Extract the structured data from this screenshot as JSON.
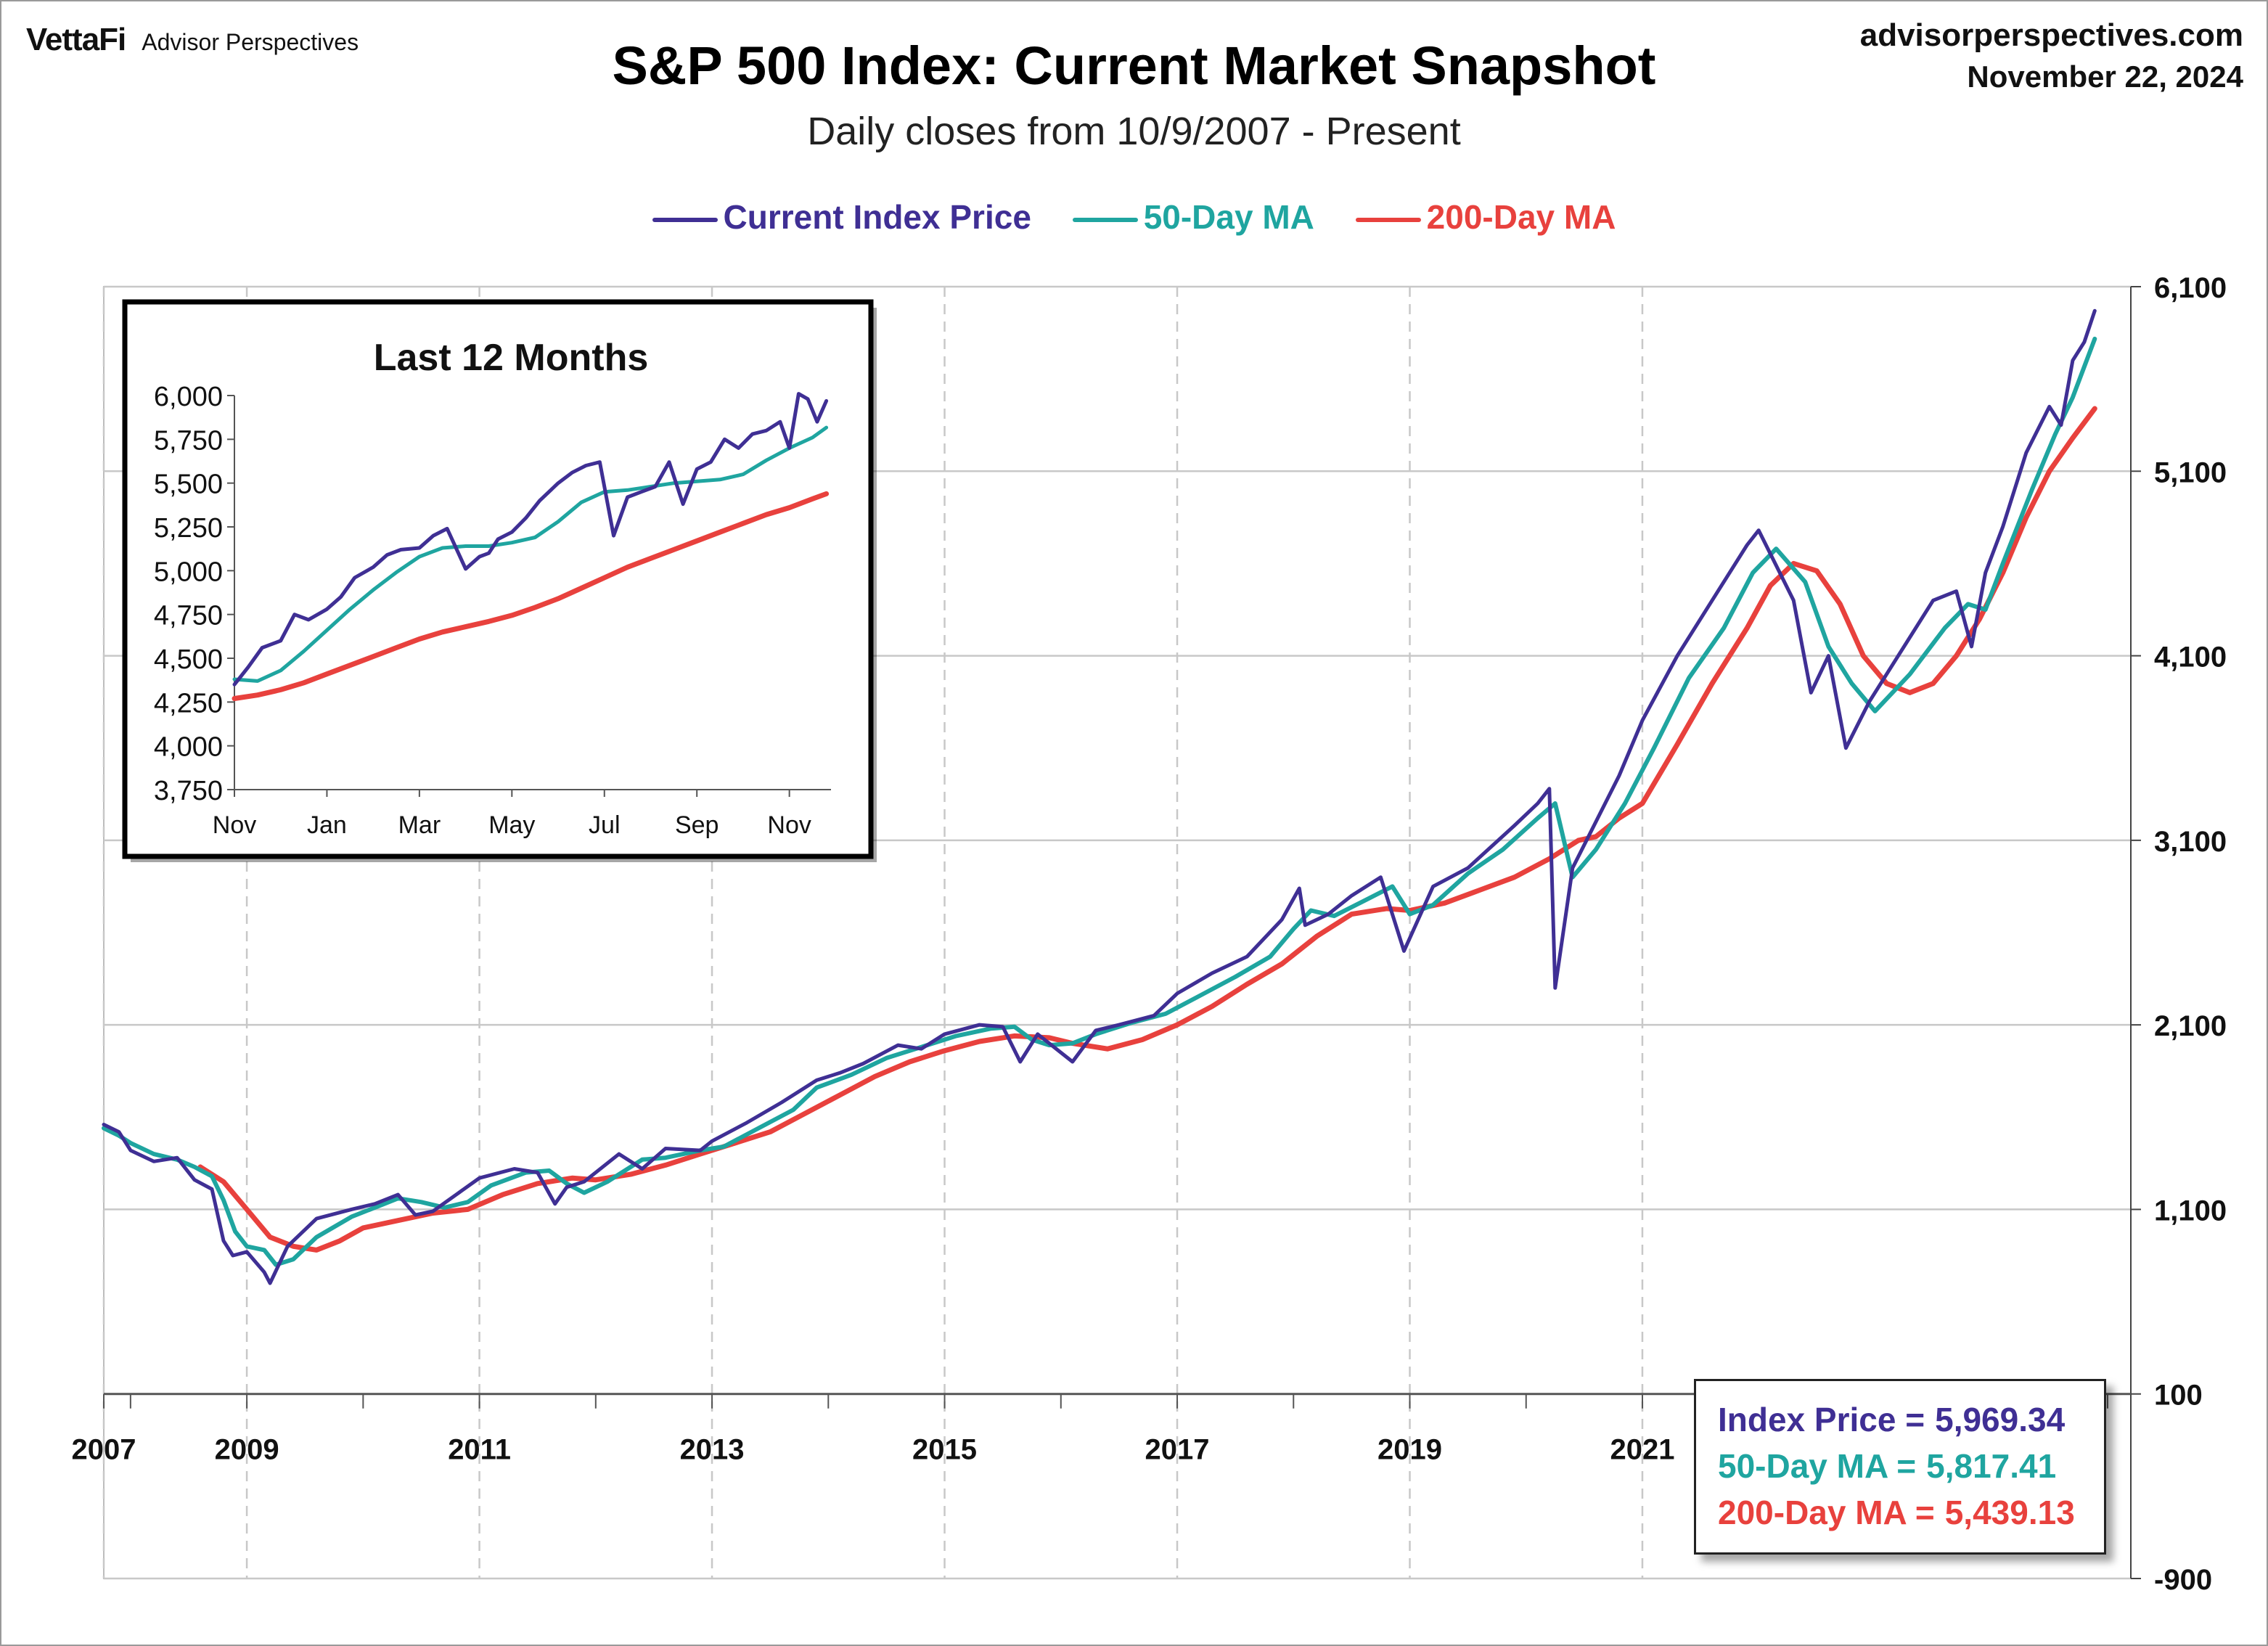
{
  "header": {
    "brand": "VettaFi",
    "brand_sub": "Advisor Perspectives",
    "site": "advisorperspectives.com",
    "date": "November 22, 2024"
  },
  "colors": {
    "price": "#3f2f94",
    "ma50": "#1fa5a0",
    "ma200": "#e8413d",
    "grid": "#c8c8c8"
  },
  "chart_data": [
    {
      "type": "line",
      "title": "S&P 500 Index: Current Market Snapshot",
      "subtitle": "Daily closes from 10/9/2007 - Present",
      "legend_position": "top-center",
      "x_ticks": [
        "2007",
        "2009",
        "2011",
        "2013",
        "2015",
        "2017",
        "2019",
        "2021"
      ],
      "y_ticks": [
        "6,100",
        "5,100",
        "4,100",
        "3,100",
        "2,100",
        "1,100",
        "100",
        "-900"
      ],
      "ylim": [
        -900,
        6100
      ],
      "xlim": [
        2007.77,
        2025.2
      ],
      "grid": true,
      "series": [
        {
          "name": "Current Index Price",
          "x": [
            2007.77,
            2007.9,
            2008.0,
            2008.2,
            2008.4,
            2008.55,
            2008.7,
            2008.8,
            2008.88,
            2009.0,
            2009.15,
            2009.2,
            2009.35,
            2009.6,
            2009.9,
            2010.1,
            2010.3,
            2010.45,
            2010.6,
            2010.8,
            2011.0,
            2011.3,
            2011.5,
            2011.65,
            2011.75,
            2011.9,
            2012.2,
            2012.4,
            2012.6,
            2012.9,
            2013.0,
            2013.3,
            2013.6,
            2013.9,
            2014.1,
            2014.3,
            2014.6,
            2014.8,
            2015.0,
            2015.3,
            2015.5,
            2015.65,
            2015.8,
            2016.1,
            2016.3,
            2016.5,
            2016.8,
            2017.0,
            2017.3,
            2017.6,
            2017.9,
            2018.05,
            2018.1,
            2018.3,
            2018.5,
            2018.75,
            2018.95,
            2019.2,
            2019.5,
            2019.9,
            2020.1,
            2020.2,
            2020.25,
            2020.4,
            2020.6,
            2020.8,
            2021.0,
            2021.3,
            2021.6,
            2021.9,
            2022.0,
            2022.3,
            2022.45,
            2022.6,
            2022.75,
            2022.95,
            2023.2,
            2023.5,
            2023.7,
            2023.83,
            2023.95,
            2024.1,
            2024.3,
            2024.5,
            2024.6,
            2024.7,
            2024.8,
            2024.89
          ],
          "values": [
            1560,
            1520,
            1420,
            1360,
            1380,
            1260,
            1210,
            930,
            850,
            870,
            760,
            700,
            900,
            1050,
            1100,
            1130,
            1180,
            1070,
            1090,
            1180,
            1270,
            1320,
            1300,
            1130,
            1220,
            1250,
            1400,
            1320,
            1430,
            1420,
            1470,
            1570,
            1680,
            1800,
            1840,
            1890,
            1990,
            1970,
            2050,
            2100,
            2090,
            1900,
            2050,
            1900,
            2070,
            2100,
            2150,
            2270,
            2380,
            2470,
            2670,
            2840,
            2640,
            2700,
            2800,
            2900,
            2500,
            2850,
            2950,
            3180,
            3300,
            3380,
            2300,
            2950,
            3200,
            3450,
            3750,
            4100,
            4400,
            4700,
            4780,
            4400,
            3900,
            4100,
            3600,
            3850,
            4100,
            4400,
            4450,
            4150,
            4550,
            4800,
            5200,
            5450,
            5350,
            5700,
            5800,
            5969.34
          ]
        },
        {
          "name": "50-Day MA",
          "x": [
            2007.77,
            2007.9,
            2008.0,
            2008.2,
            2008.4,
            2008.55,
            2008.7,
            2008.8,
            2008.9,
            2009.0,
            2009.15,
            2009.25,
            2009.4,
            2009.6,
            2009.9,
            2010.1,
            2010.3,
            2010.5,
            2010.7,
            2010.9,
            2011.1,
            2011.4,
            2011.6,
            2011.75,
            2011.9,
            2012.1,
            2012.4,
            2012.6,
            2012.9,
            2013.1,
            2013.4,
            2013.7,
            2013.9,
            2014.2,
            2014.5,
            2014.8,
            2015.1,
            2015.4,
            2015.6,
            2015.75,
            2015.9,
            2016.1,
            2016.3,
            2016.6,
            2016.9,
            2017.2,
            2017.5,
            2017.8,
            2018.0,
            2018.15,
            2018.35,
            2018.6,
            2018.85,
            2019.0,
            2019.2,
            2019.5,
            2019.8,
            2020.1,
            2020.25,
            2020.4,
            2020.6,
            2020.85,
            2021.1,
            2021.4,
            2021.7,
            2021.95,
            2022.15,
            2022.4,
            2022.6,
            2022.8,
            2023.0,
            2023.3,
            2023.6,
            2023.8,
            2023.95,
            2024.1,
            2024.35,
            2024.55,
            2024.7,
            2024.89
          ],
          "values": [
            1540,
            1500,
            1460,
            1400,
            1370,
            1330,
            1280,
            1150,
            980,
            900,
            880,
            800,
            830,
            950,
            1060,
            1110,
            1160,
            1140,
            1110,
            1140,
            1230,
            1300,
            1310,
            1240,
            1190,
            1250,
            1370,
            1380,
            1420,
            1440,
            1540,
            1640,
            1760,
            1830,
            1920,
            1980,
            2040,
            2080,
            2090,
            2020,
            1990,
            2000,
            2050,
            2110,
            2160,
            2260,
            2360,
            2470,
            2620,
            2720,
            2690,
            2770,
            2850,
            2700,
            2750,
            2920,
            3050,
            3220,
            3300,
            2900,
            3050,
            3300,
            3600,
            3980,
            4250,
            4550,
            4680,
            4500,
            4150,
            3950,
            3800,
            4000,
            4250,
            4380,
            4350,
            4600,
            5000,
            5300,
            5500,
            5817.41
          ]
        },
        {
          "name": "200-Day MA",
          "x": [
            2008.6,
            2008.8,
            2009.0,
            2009.2,
            2009.4,
            2009.6,
            2009.8,
            2010.0,
            2010.3,
            2010.6,
            2010.9,
            2011.2,
            2011.5,
            2011.8,
            2012.0,
            2012.3,
            2012.6,
            2012.9,
            2013.2,
            2013.5,
            2013.8,
            2014.1,
            2014.4,
            2014.7,
            2015.0,
            2015.3,
            2015.6,
            2015.9,
            2016.1,
            2016.4,
            2016.7,
            2017.0,
            2017.3,
            2017.6,
            2017.9,
            2018.2,
            2018.5,
            2018.8,
            2019.0,
            2019.3,
            2019.6,
            2019.9,
            2020.2,
            2020.45,
            2020.6,
            2020.8,
            2021.0,
            2021.3,
            2021.6,
            2021.9,
            2022.1,
            2022.3,
            2022.5,
            2022.7,
            2022.9,
            2023.1,
            2023.3,
            2023.5,
            2023.7,
            2023.9,
            2024.1,
            2024.3,
            2024.5,
            2024.7,
            2024.89
          ],
          "values": [
            1330,
            1250,
            1100,
            950,
            900,
            880,
            930,
            1000,
            1040,
            1080,
            1100,
            1180,
            1240,
            1270,
            1260,
            1290,
            1340,
            1400,
            1460,
            1520,
            1620,
            1720,
            1820,
            1900,
            1960,
            2010,
            2040,
            2030,
            2000,
            1970,
            2020,
            2100,
            2200,
            2320,
            2430,
            2580,
            2700,
            2730,
            2720,
            2760,
            2830,
            2900,
            3000,
            3100,
            3120,
            3220,
            3300,
            3620,
            3950,
            4250,
            4480,
            4600,
            4560,
            4380,
            4100,
            3950,
            3900,
            3950,
            4100,
            4300,
            4550,
            4850,
            5100,
            5280,
            5439.13
          ]
        }
      ],
      "summary": [
        {
          "label": "Index Price =",
          "value": "5,969.34"
        },
        {
          "label": "50-Day MA =",
          "value": "5,817.41"
        },
        {
          "label": "200-Day MA =",
          "value": "5,439.13"
        }
      ]
    },
    {
      "type": "line",
      "title": "Last 12 Months",
      "x_ticks": [
        "Nov",
        "Jan",
        "Mar",
        "May",
        "Jul",
        "Sep",
        "Nov"
      ],
      "y_ticks": [
        "6,000",
        "5,750",
        "5,500",
        "5,250",
        "5,000",
        "4,750",
        "4,500",
        "4,250",
        "4,000",
        "3,750"
      ],
      "ylim": [
        3750,
        6000
      ],
      "xlim": [
        0,
        12.9
      ],
      "grid": false,
      "series": [
        {
          "name": "Current Index Price",
          "x": [
            0,
            0.3,
            0.6,
            1.0,
            1.3,
            1.6,
            2.0,
            2.3,
            2.6,
            3.0,
            3.3,
            3.6,
            4.0,
            4.3,
            4.6,
            5.0,
            5.3,
            5.5,
            5.7,
            6.0,
            6.3,
            6.6,
            7.0,
            7.3,
            7.6,
            7.9,
            8.2,
            8.5,
            8.8,
            9.1,
            9.4,
            9.7,
            10.0,
            10.3,
            10.6,
            10.9,
            11.2,
            11.5,
            11.8,
            12.0,
            12.2,
            12.4,
            12.6,
            12.8
          ],
          "values": [
            4350,
            4450,
            4560,
            4600,
            4750,
            4720,
            4780,
            4850,
            4960,
            5020,
            5090,
            5120,
            5130,
            5200,
            5240,
            5010,
            5080,
            5100,
            5180,
            5220,
            5300,
            5400,
            5500,
            5560,
            5600,
            5620,
            5200,
            5420,
            5450,
            5480,
            5620,
            5380,
            5580,
            5620,
            5750,
            5700,
            5780,
            5800,
            5850,
            5700,
            6010,
            5980,
            5850,
            5969.34
          ]
        },
        {
          "name": "50-Day MA",
          "x": [
            0,
            0.5,
            1.0,
            1.5,
            2.0,
            2.5,
            3.0,
            3.5,
            4.0,
            4.5,
            5.0,
            5.5,
            6.0,
            6.5,
            7.0,
            7.5,
            8.0,
            8.5,
            9.0,
            9.5,
            10.0,
            10.5,
            11.0,
            11.5,
            12.0,
            12.5,
            12.8
          ],
          "values": [
            4380,
            4370,
            4430,
            4540,
            4660,
            4780,
            4890,
            4990,
            5080,
            5130,
            5140,
            5140,
            5160,
            5190,
            5280,
            5390,
            5450,
            5460,
            5480,
            5500,
            5510,
            5520,
            5550,
            5630,
            5700,
            5760,
            5817.41
          ]
        },
        {
          "name": "200-Day MA",
          "x": [
            0,
            0.5,
            1.0,
            1.5,
            2.0,
            2.5,
            3.0,
            3.5,
            4.0,
            4.5,
            5.0,
            5.5,
            6.0,
            6.5,
            7.0,
            7.5,
            8.0,
            8.5,
            9.0,
            9.5,
            10.0,
            10.5,
            11.0,
            11.5,
            12.0,
            12.5,
            12.8
          ],
          "values": [
            4270,
            4290,
            4320,
            4360,
            4410,
            4460,
            4510,
            4560,
            4610,
            4650,
            4680,
            4710,
            4745,
            4790,
            4840,
            4900,
            4960,
            5020,
            5070,
            5120,
            5170,
            5220,
            5270,
            5320,
            5360,
            5410,
            5439.13
          ]
        }
      ]
    }
  ]
}
